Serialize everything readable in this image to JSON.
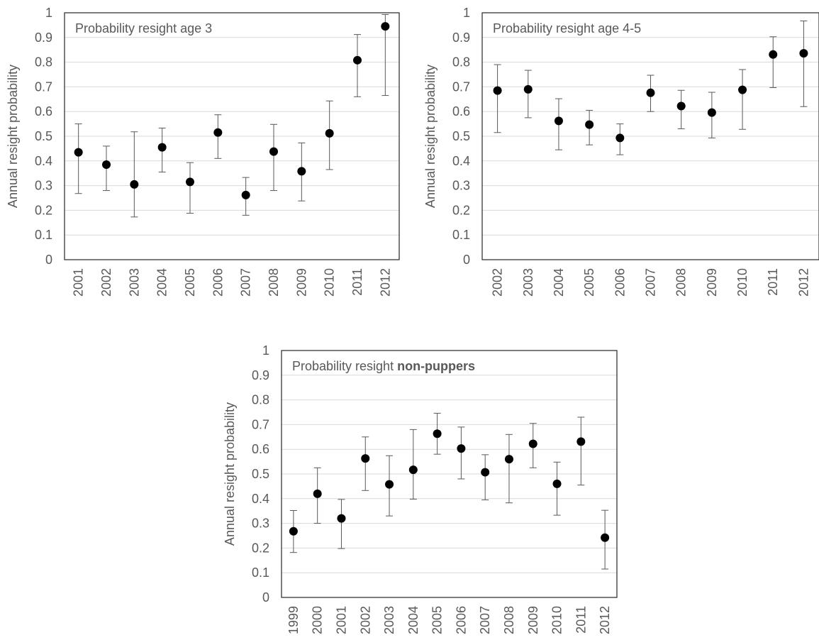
{
  "chart_data": [
    {
      "type": "scatter",
      "title": "Probability resight age 3",
      "ylabel": "Annual resight probability",
      "xlabel": "",
      "ylim": [
        0,
        1
      ],
      "yticks": [
        "0",
        "0.1",
        "0.2",
        "0.3",
        "0.4",
        "0.5",
        "0.6",
        "0.7",
        "0.8",
        "0.9",
        "1"
      ],
      "grid": true,
      "error_bars": true,
      "categories": [
        "2001",
        "2002",
        "2003",
        "2004",
        "2005",
        "2006",
        "2007",
        "2008",
        "2009",
        "2010",
        "2011",
        "2012"
      ],
      "values": [
        0.435,
        0.385,
        0.305,
        0.455,
        0.315,
        0.515,
        0.262,
        0.438,
        0.358,
        0.512,
        0.808,
        0.945
      ],
      "lower": [
        0.268,
        0.28,
        0.173,
        0.355,
        0.188,
        0.41,
        0.18,
        0.28,
        0.238,
        0.365,
        0.66,
        0.665
      ],
      "upper": [
        0.55,
        0.46,
        0.518,
        0.533,
        0.393,
        0.587,
        0.333,
        0.548,
        0.473,
        0.643,
        0.912,
        0.993
      ]
    },
    {
      "type": "scatter",
      "title": "Probability resight age 4-5",
      "ylabel": "Annual resight probability",
      "xlabel": "",
      "ylim": [
        0,
        1
      ],
      "yticks": [
        "0",
        "0.1",
        "0.2",
        "0.3",
        "0.4",
        "0.5",
        "0.6",
        "0.7",
        "0.8",
        "0.9",
        "1"
      ],
      "grid": true,
      "error_bars": true,
      "categories": [
        "2002",
        "2003",
        "2004",
        "2005",
        "2006",
        "2007",
        "2008",
        "2009",
        "2010",
        "2011",
        "2012"
      ],
      "values": [
        0.685,
        0.69,
        0.562,
        0.547,
        0.493,
        0.676,
        0.622,
        0.596,
        0.688,
        0.831,
        0.836
      ],
      "lower": [
        0.515,
        0.575,
        0.445,
        0.465,
        0.425,
        0.6,
        0.53,
        0.493,
        0.528,
        0.697,
        0.62
      ],
      "upper": [
        0.79,
        0.767,
        0.652,
        0.605,
        0.55,
        0.747,
        0.686,
        0.678,
        0.77,
        0.903,
        0.967
      ]
    },
    {
      "type": "scatter",
      "title_parts": [
        "Probability resight ",
        "non-puppers"
      ],
      "ylabel": "Annual resight probability",
      "xlabel": "",
      "ylim": [
        0,
        1
      ],
      "yticks": [
        "0",
        "0.1",
        "0.2",
        "0.3",
        "0.4",
        "0.5",
        "0.6",
        "0.7",
        "0.8",
        "0.9",
        "1"
      ],
      "grid": true,
      "error_bars": true,
      "categories": [
        "1999",
        "2000",
        "2001",
        "2002",
        "2003",
        "2004",
        "2005",
        "2006",
        "2007",
        "2008",
        "2009",
        "2010",
        "2011",
        "2012"
      ],
      "values": [
        0.268,
        0.42,
        0.32,
        0.563,
        0.458,
        0.517,
        0.663,
        0.603,
        0.507,
        0.56,
        0.622,
        0.46,
        0.631,
        0.242
      ],
      "lower": [
        0.182,
        0.3,
        0.198,
        0.433,
        0.33,
        0.398,
        0.58,
        0.48,
        0.395,
        0.383,
        0.525,
        0.333,
        0.455,
        0.115
      ],
      "upper": [
        0.352,
        0.525,
        0.397,
        0.65,
        0.574,
        0.68,
        0.746,
        0.69,
        0.578,
        0.66,
        0.705,
        0.548,
        0.73,
        0.353
      ]
    }
  ]
}
